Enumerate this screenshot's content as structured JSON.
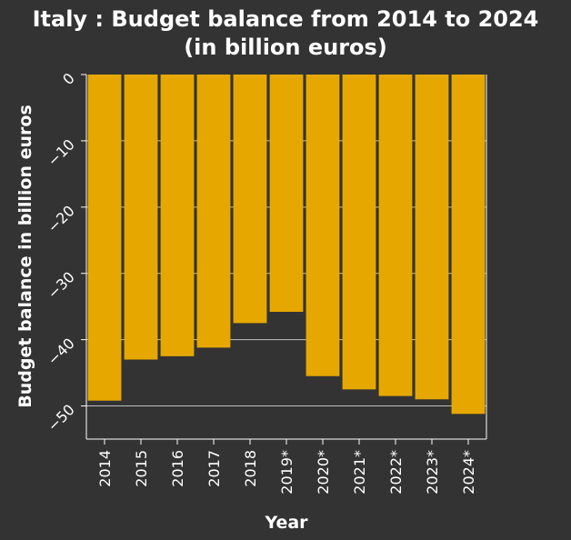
{
  "chart_data": {
    "type": "bar",
    "title_line1": "Italy : Budget balance from 2014 to 2024",
    "title_line2": "(in billion euros)",
    "xlabel": "Year",
    "ylabel": "Budget balance in billion euros",
    "categories": [
      "2014",
      "2015",
      "2016",
      "2017",
      "2018",
      "2019*",
      "2020*",
      "2021*",
      "2022*",
      "2023*",
      "2024*"
    ],
    "values": [
      -49.2,
      -43.0,
      -42.5,
      -41.2,
      -37.5,
      -35.8,
      -45.5,
      -47.5,
      -48.5,
      -49.0,
      -51.2
    ],
    "yticks": [
      0,
      -10,
      -20,
      -30,
      -40,
      -50
    ],
    "ylim": [
      -55,
      0
    ],
    "grid": true,
    "colors": {
      "bar": "#e6a800",
      "background": "#333333",
      "grid": "#bfbfbf",
      "text": "#ffffff"
    }
  }
}
